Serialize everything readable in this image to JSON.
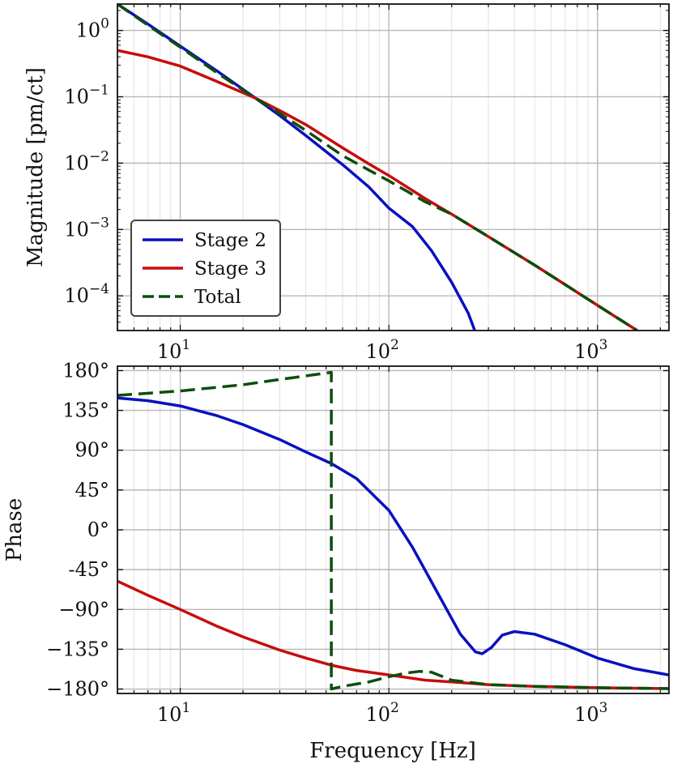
{
  "figure": {
    "xlabel": "Frequency [Hz]"
  },
  "colors": {
    "stage2": "#0a10bf",
    "stage3": "#c70d0d",
    "total": "#0d4d0d",
    "grid_major": "#b8b8b8",
    "grid_minor": "#e2e2e2"
  },
  "chart_data": [
    {
      "type": "line",
      "ylabel": "Magnitude [pm/ct]",
      "xscale": "log",
      "yscale": "log",
      "xlim": [
        5,
        2200
      ],
      "ylim": [
        3e-05,
        2.5
      ],
      "grid": true,
      "legend_placement": "lower-left",
      "x_ticks": [
        {
          "value": 10,
          "base": "10",
          "exp": "1"
        },
        {
          "value": 100,
          "base": "10",
          "exp": "2"
        },
        {
          "value": 1000,
          "base": "10",
          "exp": "3"
        }
      ],
      "y_ticks": [
        {
          "value": 1,
          "base": "10",
          "exp": "0"
        },
        {
          "value": 0.1,
          "base": "10",
          "exp": "−1"
        },
        {
          "value": 0.01,
          "base": "10",
          "exp": "−2"
        },
        {
          "value": 0.001,
          "base": "10",
          "exp": "−3"
        },
        {
          "value": 0.0001,
          "base": "10",
          "exp": "−4"
        }
      ],
      "series": [
        {
          "name": "Stage 2",
          "color": "#0a10bf",
          "dash": false,
          "x": [
            5,
            7,
            10,
            15,
            23,
            30,
            40,
            60,
            80,
            100,
            130,
            160,
            200,
            240,
            258
          ],
          "y": [
            2.5,
            1.25,
            0.58,
            0.245,
            0.095,
            0.052,
            0.026,
            0.0095,
            0.0044,
            0.0021,
            0.0011,
            0.00048,
            0.00016,
            5.5e-05,
            3e-05
          ]
        },
        {
          "name": "Stage 3",
          "color": "#c70d0d",
          "dash": false,
          "x": [
            5,
            7,
            10,
            15,
            23,
            30,
            40,
            60,
            80,
            100,
            150,
            200,
            300,
            500,
            1000,
            1550
          ],
          "y": [
            0.5,
            0.4,
            0.29,
            0.17,
            0.095,
            0.062,
            0.038,
            0.017,
            0.0098,
            0.0065,
            0.0029,
            0.0017,
            0.00078,
            0.00029,
            7.2e-05,
            3e-05
          ]
        },
        {
          "name": "Total",
          "color": "#0d4d0d",
          "dash": true,
          "x": [
            5,
            7,
            10,
            15,
            23,
            30,
            40,
            60,
            80,
            100,
            150,
            200,
            300,
            500,
            1000,
            1550
          ],
          "y": [
            2.5,
            1.2,
            0.56,
            0.23,
            0.095,
            0.056,
            0.031,
            0.013,
            0.0079,
            0.0054,
            0.0026,
            0.0017,
            0.00078,
            0.00029,
            7.2e-05,
            3e-05
          ]
        }
      ]
    },
    {
      "type": "line",
      "ylabel": "Phase",
      "xscale": "log",
      "xlim": [
        5,
        2200
      ],
      "ylim": [
        -185,
        185
      ],
      "grid": true,
      "x_ticks": [
        {
          "value": 10,
          "base": "10",
          "exp": "1"
        },
        {
          "value": 100,
          "base": "10",
          "exp": "2"
        },
        {
          "value": 1000,
          "base": "10",
          "exp": "3"
        }
      ],
      "y_ticks": [
        {
          "value": 180,
          "label": "180°"
        },
        {
          "value": 135,
          "label": "135°"
        },
        {
          "value": 90,
          "label": "90°"
        },
        {
          "value": 45,
          "label": "45°"
        },
        {
          "value": 0,
          "label": "0°"
        },
        {
          "value": -45,
          "label": "-45°"
        },
        {
          "value": -90,
          "label": "−90°"
        },
        {
          "value": -135,
          "label": "−135°"
        },
        {
          "value": -180,
          "label": "−180°"
        }
      ],
      "series": [
        {
          "name": "Stage 2",
          "color": "#0a10bf",
          "dash": false,
          "x": [
            5,
            7,
            10,
            15,
            20,
            30,
            40,
            53,
            70,
            100,
            130,
            170,
            220,
            260,
            280,
            310,
            350,
            400,
            500,
            700,
            1000,
            1500,
            2200
          ],
          "y": [
            149,
            146,
            140,
            129,
            119,
            102,
            88,
            75,
            58,
            22,
            -20,
            -70,
            -118,
            -138,
            -140,
            -133,
            -119,
            -115,
            -118,
            -130,
            -145,
            -157,
            -164
          ]
        },
        {
          "name": "Stage 3",
          "color": "#c70d0d",
          "dash": false,
          "x": [
            5,
            7,
            10,
            15,
            20,
            30,
            40,
            53,
            70,
            100,
            150,
            200,
            300,
            500,
            1000,
            2200
          ],
          "y": [
            -58,
            -74,
            -90,
            -109,
            -121,
            -136,
            -145,
            -153,
            -159,
            -164,
            -170,
            -172,
            -175,
            -177,
            -178.5,
            -179.5
          ]
        },
        {
          "name": "Total",
          "color": "#0d4d0d",
          "dash": true,
          "x": [
            5,
            10,
            20,
            30,
            40,
            53,
            53,
            60,
            80,
            100,
            120,
            140,
            160,
            200,
            300,
            500,
            1000,
            2200
          ],
          "y": [
            152,
            157,
            164,
            170,
            174,
            178,
            -180,
            -177,
            -172,
            -166,
            -162,
            -160,
            -161,
            -170,
            -175,
            -177,
            -178.5,
            -179.5
          ]
        }
      ]
    }
  ]
}
